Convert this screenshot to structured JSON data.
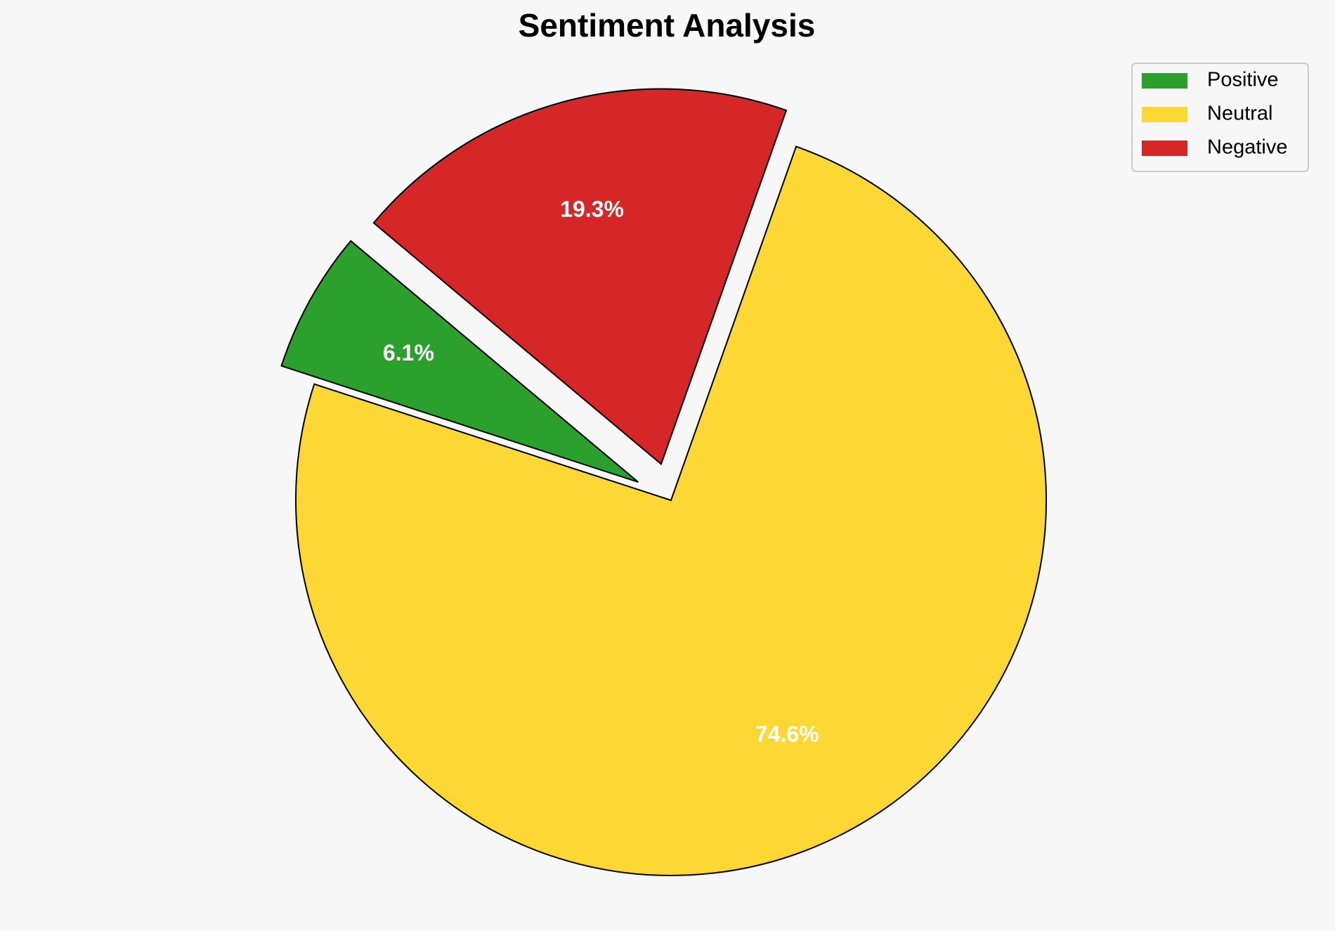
{
  "chart_data": {
    "type": "pie",
    "title": "Sentiment Analysis",
    "categories": [
      "Positive",
      "Neutral",
      "Negative"
    ],
    "values": [
      6.1,
      74.6,
      19.3
    ],
    "value_labels": [
      "6.1%",
      "74.6%",
      "19.3%"
    ],
    "colors": [
      "#2ca02c",
      "#fdd835",
      "#d62728"
    ],
    "explode": [
      0.1,
      0,
      0.1
    ],
    "legend": "upper right"
  }
}
